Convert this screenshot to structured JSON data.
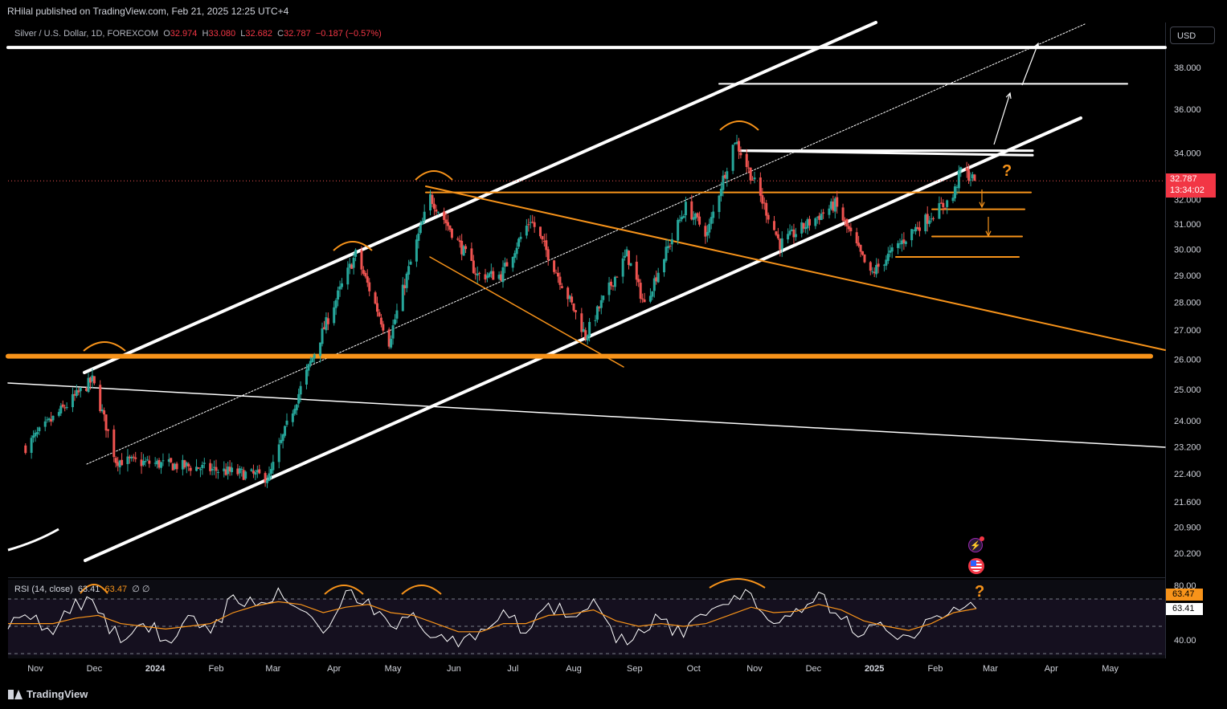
{
  "header": {
    "published": "RHilal published on TradingView.com, Feb 21, 2025 12:25 UTC+4",
    "symbol": "Silver / U.S. Dollar, 1D, FOREXCOM",
    "ohlc": {
      "O": "32.974",
      "H": "33.080",
      "L": "32.682",
      "C": "32.787",
      "change": "−0.187 (−0.57%)"
    }
  },
  "currency_button": "USD",
  "last_price": {
    "value": "32.787",
    "countdown": "13:34:02"
  },
  "rsi": {
    "label": "RSI (14, close)",
    "value": "63.41",
    "ma_value": "63.47",
    "extra": "∅ ∅",
    "tag_ma": "63.47",
    "tag_rsi": "63.41",
    "axis_labels": [
      "80.00",
      "40.00"
    ]
  },
  "annotations": {
    "question_mark": "?"
  },
  "footer": {
    "brand": "TradingView"
  },
  "colors": {
    "bull": "#26a69a",
    "bear": "#ef5350",
    "orange": "#f7931a",
    "white": "#ffffff",
    "rsi_line": "#ffffff",
    "rsi_ma": "#f7931a"
  },
  "chart_data": [
    {
      "type": "candlestick",
      "title": "Silver / U.S. Dollar, 1D, FOREXCOM",
      "y_axis": {
        "scale": "log",
        "ticks": [
          38.0,
          36.0,
          34.0,
          32.0,
          31.0,
          30.0,
          29.0,
          28.0,
          27.0,
          26.0,
          25.0,
          24.0,
          23.2,
          22.4,
          21.6,
          20.9,
          20.2
        ],
        "tick_labels": [
          "38.000",
          "36.000",
          "34.000",
          "32.000",
          "31.000",
          "30.000",
          "29.000",
          "28.000",
          "27.000",
          "26.000",
          "25.000",
          "24.000",
          "23.200",
          "22.400",
          "21.600",
          "20.900",
          "20.200"
        ]
      },
      "x_axis": {
        "labels": [
          "Nov",
          "Dec",
          "2024",
          "Feb",
          "Mar",
          "Apr",
          "May",
          "Jun",
          "Jul",
          "Aug",
          "Sep",
          "Oct",
          "Nov",
          "Dec",
          "2025",
          "Feb",
          "Mar",
          "Apr",
          "May"
        ],
        "bold": [
          "2024",
          "2025"
        ]
      },
      "key_points": [
        {
          "date": "2023-10-27",
          "close": 23.2
        },
        {
          "date": "2023-11-30",
          "close": 25.3
        },
        {
          "date": "2023-12-12",
          "close": 22.8
        },
        {
          "date": "2024-01-20",
          "close": 22.6
        },
        {
          "date": "2024-02-28",
          "close": 22.3
        },
        {
          "date": "2024-04-12",
          "close": 29.8
        },
        {
          "date": "2024-04-29",
          "close": 26.6
        },
        {
          "date": "2024-05-20",
          "close": 32.1
        },
        {
          "date": "2024-06-13",
          "close": 29.0
        },
        {
          "date": "2024-06-25",
          "close": 29.0
        },
        {
          "date": "2024-07-10",
          "close": 31.2
        },
        {
          "date": "2024-08-07",
          "close": 26.8
        },
        {
          "date": "2024-08-28",
          "close": 29.8
        },
        {
          "date": "2024-09-06",
          "close": 27.9
        },
        {
          "date": "2024-09-27",
          "close": 31.7
        },
        {
          "date": "2024-10-08",
          "close": 30.6
        },
        {
          "date": "2024-10-22",
          "close": 34.6
        },
        {
          "date": "2024-11-14",
          "close": 30.2
        },
        {
          "date": "2024-12-12",
          "close": 31.8
        },
        {
          "date": "2024-12-30",
          "close": 29.0
        },
        {
          "date": "2025-01-20",
          "close": 30.7
        },
        {
          "date": "2025-02-10",
          "close": 32.1
        },
        {
          "date": "2025-02-14",
          "close": 33.3
        },
        {
          "date": "2025-02-21",
          "close": 32.787
        }
      ],
      "horizontal_levels": [
        {
          "price": 39.0,
          "color": "white",
          "name": ""
        },
        {
          "price": 37.2,
          "color": "white",
          "name": ""
        },
        {
          "price": 34.1,
          "color": "white",
          "name": ""
        },
        {
          "price": 32.3,
          "color": "orange",
          "name": ""
        },
        {
          "price": 31.6,
          "color": "orange",
          "name": ""
        },
        {
          "price": 30.5,
          "color": "orange",
          "name": ""
        },
        {
          "price": 29.7,
          "color": "orange",
          "name": ""
        },
        {
          "price": 26.1,
          "color": "orange",
          "name": ""
        }
      ],
      "last": 32.787
    },
    {
      "type": "line",
      "title": "RSI (14, close)",
      "y_axis": {
        "ticks": [
          80,
          40
        ]
      },
      "series": [
        {
          "name": "RSI",
          "values": [
            48,
            55,
            44,
            70,
            60,
            38,
            52,
            40,
            58,
            45,
            73,
            65,
            78,
            62,
            45,
            76,
            70,
            50,
            60,
            42,
            35,
            48,
            62,
            45,
            67,
            57,
            70,
            38,
            48,
            55,
            42,
            58,
            66,
            74,
            52,
            63,
            75,
            55,
            44,
            47,
            43,
            56,
            64,
            63
          ]
        },
        {
          "name": "MA",
          "values": [
            52,
            52,
            52,
            56,
            58,
            52,
            50,
            48,
            50,
            52,
            60,
            65,
            68,
            66,
            60,
            64,
            66,
            60,
            58,
            52,
            46,
            46,
            52,
            52,
            58,
            59,
            62,
            54,
            50,
            52,
            50,
            52,
            58,
            64,
            60,
            61,
            66,
            62,
            54,
            50,
            47,
            52,
            60,
            63
          ]
        }
      ]
    }
  ]
}
